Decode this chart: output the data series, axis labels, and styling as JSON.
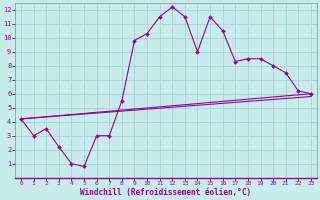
{
  "xlabel": "Windchill (Refroidissement éolien,°C)",
  "background_color": "#c8ecec",
  "grid_color": "#a8d8d8",
  "line_color": "#990099",
  "xlim": [
    -0.5,
    23.5
  ],
  "ylim": [
    0,
    12.5
  ],
  "xticks": [
    0,
    1,
    2,
    3,
    4,
    5,
    6,
    7,
    8,
    9,
    10,
    11,
    12,
    13,
    14,
    15,
    16,
    17,
    18,
    19,
    20,
    21,
    22,
    23
  ],
  "yticks": [
    1,
    2,
    3,
    4,
    5,
    6,
    7,
    8,
    9,
    10,
    11,
    12
  ],
  "line1_x": [
    0,
    1,
    2,
    3,
    4,
    5,
    6,
    7,
    8,
    9,
    10,
    11,
    12,
    13,
    14,
    15,
    16,
    17,
    18,
    19,
    20,
    21,
    22,
    23
  ],
  "line1_y": [
    4.2,
    3.0,
    3.5,
    2.2,
    1.0,
    0.8,
    3.0,
    3.0,
    5.5,
    9.8,
    10.3,
    11.5,
    12.2,
    11.5,
    9.0,
    11.5,
    10.5,
    8.3,
    8.5,
    8.5,
    8.0,
    7.5,
    6.2,
    6.0
  ],
  "line2_x": [
    0,
    23
  ],
  "line2_y": [
    4.2,
    6.0
  ],
  "line3_x": [
    0,
    23
  ],
  "line3_y": [
    4.2,
    5.8
  ],
  "marker_x": [
    0,
    1,
    2,
    3,
    4,
    5,
    6,
    7,
    8,
    9,
    10,
    11,
    12,
    13,
    14,
    15,
    16,
    17,
    18,
    19,
    20,
    21,
    22,
    23
  ],
  "marker_y": [
    4.2,
    3.0,
    3.5,
    2.2,
    1.0,
    0.8,
    3.0,
    3.0,
    5.5,
    9.8,
    10.3,
    11.5,
    12.2,
    11.5,
    9.0,
    11.5,
    10.5,
    8.3,
    8.5,
    8.5,
    8.0,
    7.5,
    6.2,
    6.0
  ]
}
